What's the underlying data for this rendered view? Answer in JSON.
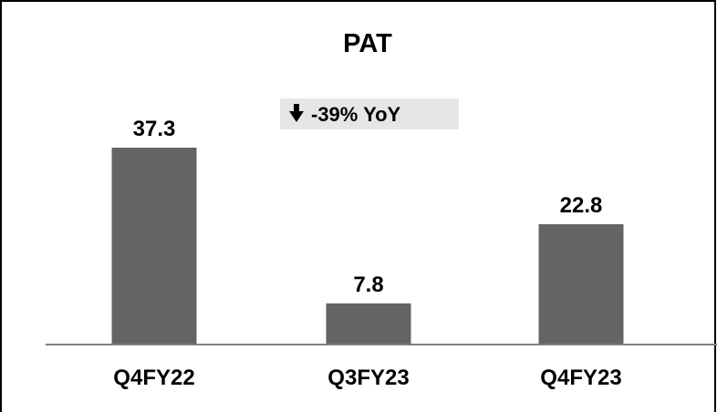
{
  "chart_data": {
    "type": "bar",
    "title": "PAT",
    "categories": [
      "Q4FY22",
      "Q3FY23",
      "Q4FY23"
    ],
    "values": [
      37.3,
      7.8,
      22.8
    ],
    "value_labels": [
      "37.3",
      "7.8",
      "22.8"
    ],
    "annotation": {
      "arrow": "down",
      "text": "-39% YoY"
    },
    "xlabel": "",
    "ylabel": "",
    "grid": false,
    "legend": "none",
    "colors": {
      "bar": "#646464",
      "badge_bg": "#e6e6e6",
      "border": "#000000",
      "axis": "#808080"
    }
  }
}
